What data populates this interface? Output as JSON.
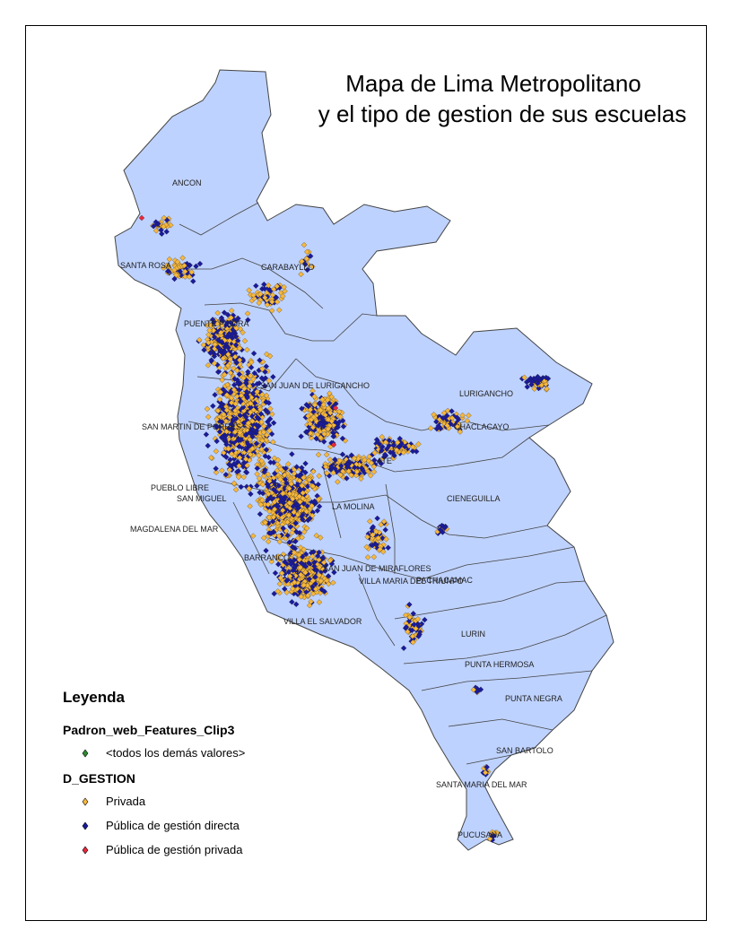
{
  "title": {
    "line1": "Mapa de Lima Metropolitano",
    "line2": "y el tipo de gestion de sus escuelas"
  },
  "districts": [
    {
      "name": "ANCON"
    },
    {
      "name": "SANTA ROSA"
    },
    {
      "name": "CARABAYLLO"
    },
    {
      "name": "PUENTE PIEDRA"
    },
    {
      "name": "SAN JUAN DE LURIGANCHO"
    },
    {
      "name": "LURIGANCHO"
    },
    {
      "name": "CHACLACAYO"
    },
    {
      "name": "SAN MARTIN DE PORRES"
    },
    {
      "name": "PUEBLO LIBRE"
    },
    {
      "name": "SAN MIGUEL"
    },
    {
      "name": "MAGDALENA DEL MAR"
    },
    {
      "name": "CIENEGUILLA"
    },
    {
      "name": "LA MOLINA"
    },
    {
      "name": "ATE"
    },
    {
      "name": "BARRANCO"
    },
    {
      "name": "SAN JUAN DE MIRAFLORES"
    },
    {
      "name": "VILLA EL SALVADOR"
    },
    {
      "name": "VILLA MARIA DEL TRIUNFO"
    },
    {
      "name": "PACHACAMAC"
    },
    {
      "name": "LURIN"
    },
    {
      "name": "PUNTA HERMOSA"
    },
    {
      "name": "PUNTA NEGRA"
    },
    {
      "name": "SAN BARTOLO"
    },
    {
      "name": "SANTA MARIA DEL MAR"
    },
    {
      "name": "PUCUSANA"
    }
  ],
  "legend": {
    "title": "Leyenda",
    "layer_name": "Padron_web_Features_Clip3",
    "other_values_label": "<todos los demás valores>",
    "field_name": "D_GESTION",
    "classes": [
      {
        "label": "Privada",
        "color": "#f6b73c"
      },
      {
        "label": "Pública de gestión directa",
        "color": "#1a1a9c"
      },
      {
        "label": "Pública de gestión privada",
        "color": "#e8283c"
      }
    ],
    "other_color": "#2e8b2e"
  },
  "colors": {
    "land": "#bed2ff",
    "outline": "#444444",
    "private_fill": "#f6b73c",
    "public_direct_fill": "#1a1a9c",
    "public_private_fill": "#e8283c"
  }
}
